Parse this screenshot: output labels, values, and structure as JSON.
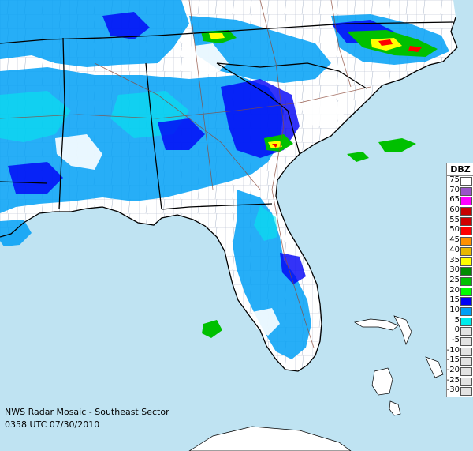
{
  "caption": {
    "title": "NWS Radar Mosaic - Southeast Sector",
    "timestamp": "0358 UTC 07/30/2010"
  },
  "legend": {
    "title": "DBZ",
    "entries": [
      {
        "label": "75",
        "color": "#ffffff"
      },
      {
        "label": "70",
        "color": "#9955c9"
      },
      {
        "label": "65",
        "color": "#ff00ff"
      },
      {
        "label": "60",
        "color": "#c80000"
      },
      {
        "label": "55",
        "color": "#d00000"
      },
      {
        "label": "50",
        "color": "#ff0000"
      },
      {
        "label": "45",
        "color": "#ff9000"
      },
      {
        "label": "40",
        "color": "#e8b800"
      },
      {
        "label": "35",
        "color": "#ffff00"
      },
      {
        "label": "30",
        "color": "#008c00"
      },
      {
        "label": "25",
        "color": "#00c000"
      },
      {
        "label": "20",
        "color": "#00ff00"
      },
      {
        "label": "15",
        "color": "#0000f6"
      },
      {
        "label": "10",
        "color": "#01a0f6"
      },
      {
        "label": "5",
        "color": "#00ecec"
      },
      {
        "label": "0",
        "color": "#e3e3e3"
      },
      {
        "label": "-5",
        "color": "#e3e3e3"
      },
      {
        "label": "-10",
        "color": "#e3e3e3"
      },
      {
        "label": "-15",
        "color": "#e3e3e3"
      },
      {
        "label": "-20",
        "color": "#e3e3e3"
      },
      {
        "label": "-25",
        "color": "#e3e3e3"
      },
      {
        "label": "-30",
        "color": "#e3e3e3"
      }
    ]
  },
  "colors": {
    "ocean": "#bfe3f2",
    "land": "#ffffff",
    "state_border": "#000000",
    "county_line": "#a9b4c8",
    "highway": "#8b4a3a"
  }
}
